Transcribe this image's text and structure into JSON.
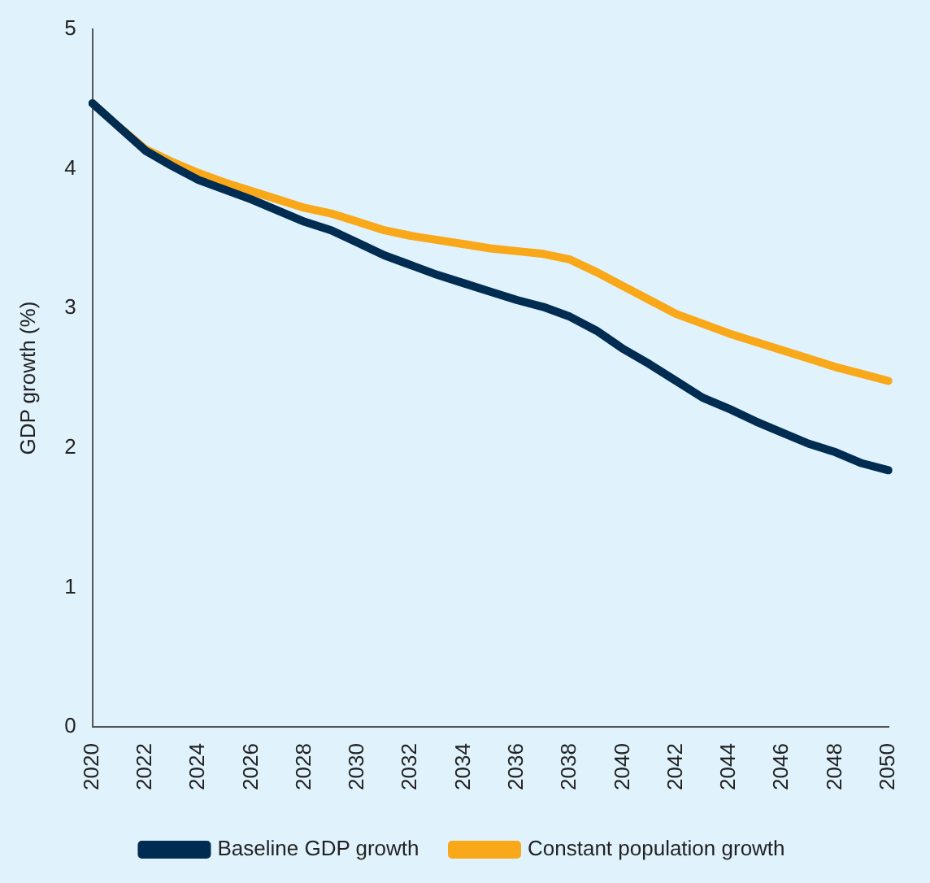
{
  "chart_data": {
    "type": "line",
    "ylabel": "GDP growth (%)",
    "categories": [
      "2020",
      null,
      "2022",
      null,
      "2024",
      null,
      "2026",
      null,
      "2028",
      null,
      "2030",
      null,
      "2032",
      null,
      "2034",
      null,
      "2036",
      null,
      "2038",
      null,
      "2040",
      null,
      "2042",
      null,
      "2044",
      null,
      "2046",
      null,
      "2048",
      null,
      "2050"
    ],
    "series": [
      {
        "name": "Baseline GDP growth",
        "color": "#002c52",
        "values": [
          4.47,
          4.3,
          4.13,
          4.02,
          3.92,
          3.85,
          3.78,
          3.7,
          3.62,
          3.56,
          3.47,
          3.38,
          3.31,
          3.24,
          3.18,
          3.12,
          3.06,
          3.01,
          2.94,
          2.84,
          2.71,
          2.6,
          2.48,
          2.36,
          2.28,
          2.19,
          2.11,
          2.03,
          1.97,
          1.89,
          1.84
        ]
      },
      {
        "name": "Constant population growth",
        "color": "#f9a81a",
        "values": [
          4.47,
          4.3,
          4.14,
          4.05,
          3.97,
          3.9,
          3.84,
          3.78,
          3.72,
          3.68,
          3.62,
          3.56,
          3.52,
          3.49,
          3.46,
          3.43,
          3.41,
          3.39,
          3.35,
          3.26,
          3.16,
          3.06,
          2.96,
          2.89,
          2.82,
          2.76,
          2.7,
          2.64,
          2.58,
          2.53,
          2.48
        ]
      }
    ],
    "ylim": [
      0,
      5
    ],
    "yticks": [
      0,
      1,
      2,
      3,
      4,
      5
    ],
    "grid": false,
    "legend": "bottom",
    "marker": "none",
    "line_style": "solid"
  }
}
